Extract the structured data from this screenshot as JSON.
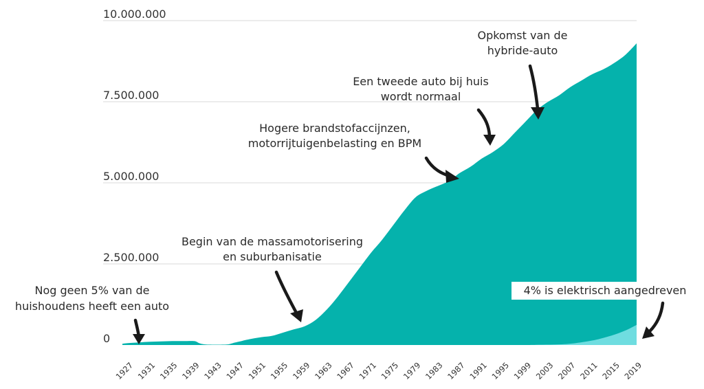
{
  "chart_data": {
    "type": "area",
    "title": "",
    "xlabel": "",
    "ylabel": "",
    "ylim": [
      0,
      10000000
    ],
    "y_ticks": [
      {
        "value": 0,
        "label": "0"
      },
      {
        "value": 2500000,
        "label": "2.500.000"
      },
      {
        "value": 5000000,
        "label": "5.000.000"
      },
      {
        "value": 7500000,
        "label": "7.500.000"
      },
      {
        "value": 10000000,
        "label": "10.000.000"
      }
    ],
    "x_tick_labels": [
      "1927",
      "1931",
      "1935",
      "1939",
      "1943",
      "1947",
      "1951",
      "1955",
      "1959",
      "1963",
      "1967",
      "1971",
      "1975",
      "1979",
      "1983",
      "1987",
      "1991",
      "1995",
      "1999",
      "2003",
      "2007",
      "2011",
      "2015",
      "2019"
    ],
    "xlim": [
      1926,
      2019
    ],
    "grid": "horizontal",
    "colors": {
      "total": "#05b2ac",
      "electric": "#6fdde0"
    },
    "series": [
      {
        "key": "total",
        "x": [
          1926,
          1927,
          1929,
          1931,
          1933,
          1935,
          1937,
          1939,
          1940,
          1941,
          1943,
          1945,
          1946,
          1947,
          1949,
          1951,
          1953,
          1955,
          1957,
          1959,
          1961,
          1963,
          1965,
          1967,
          1969,
          1971,
          1973,
          1975,
          1977,
          1979,
          1981,
          1983,
          1985,
          1987,
          1989,
          1991,
          1993,
          1995,
          1997,
          1999,
          2001,
          2003,
          2005,
          2007,
          2009,
          2011,
          2013,
          2015,
          2017,
          2019
        ],
        "values": [
          40000,
          60000,
          80000,
          100000,
          110000,
          120000,
          120000,
          120000,
          50000,
          20000,
          10000,
          20000,
          60000,
          100000,
          180000,
          240000,
          280000,
          380000,
          480000,
          580000,
          780000,
          1100000,
          1500000,
          1950000,
          2400000,
          2850000,
          3250000,
          3700000,
          4150000,
          4550000,
          4750000,
          4900000,
          5050000,
          5300000,
          5500000,
          5750000,
          5950000,
          6200000,
          6550000,
          6900000,
          7250000,
          7500000,
          7700000,
          7950000,
          8150000,
          8350000,
          8500000,
          8700000,
          8950000,
          9300000
        ]
      },
      {
        "key": "electric",
        "x": [
          1926,
          1995,
          2000,
          2005,
          2008,
          2011,
          2013,
          2015,
          2017,
          2019
        ],
        "values": [
          0,
          0,
          5000,
          20000,
          60000,
          140000,
          220000,
          320000,
          450000,
          620000
        ]
      }
    ],
    "annotations": [
      {
        "key": "early",
        "lines": [
          "Nog geen 5% van de",
          "huishoudens heeft een auto"
        ]
      },
      {
        "key": "mass",
        "lines": [
          "Begin van de massamotorisering",
          "en suburbanisatie"
        ]
      },
      {
        "key": "fuel",
        "lines": [
          "Hogere brandstofaccijnzen,",
          "motorrijtuigenbelasting en BPM"
        ]
      },
      {
        "key": "second",
        "lines": [
          "Een tweede auto bij huis",
          "wordt normaal"
        ]
      },
      {
        "key": "hybrid",
        "lines": [
          "Opkomst van de",
          "hybride-auto"
        ]
      },
      {
        "key": "electric",
        "lines": [
          "4% is elektrisch aangedreven"
        ]
      }
    ]
  }
}
